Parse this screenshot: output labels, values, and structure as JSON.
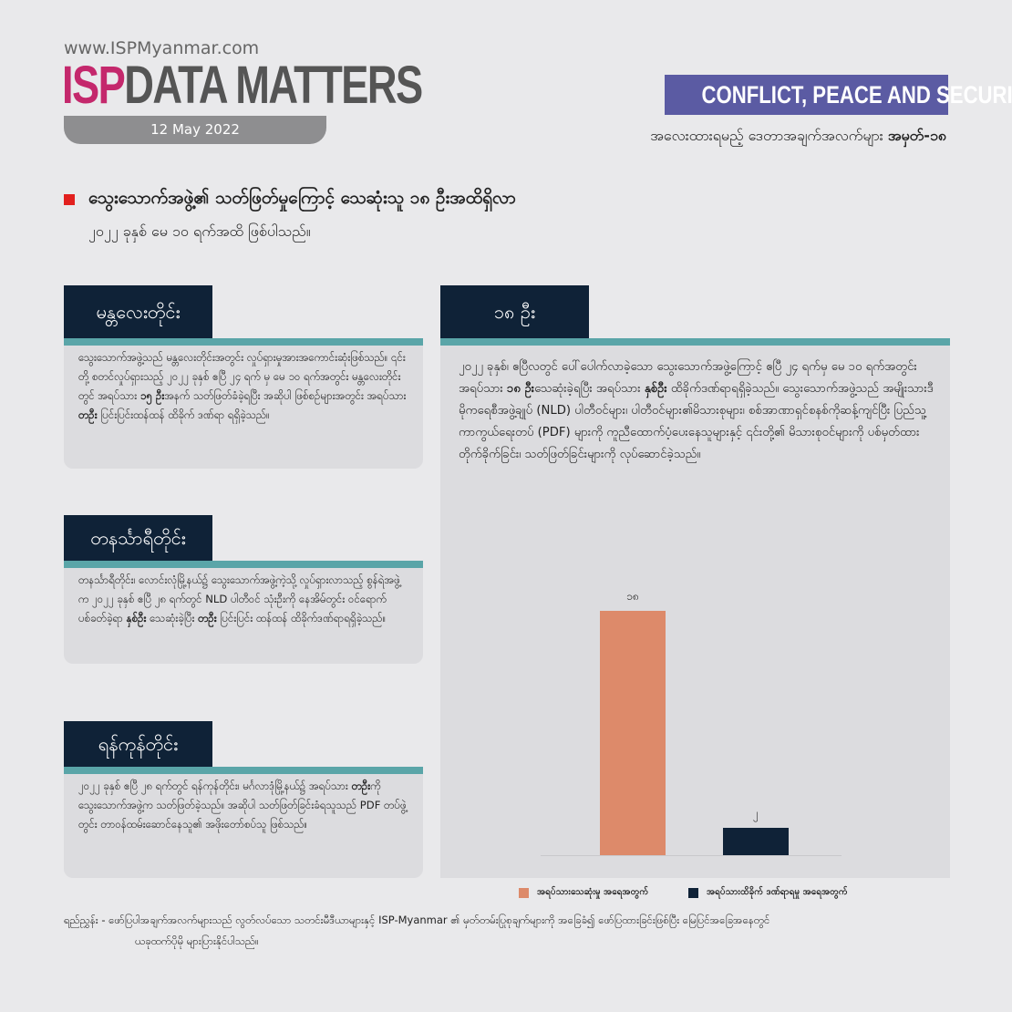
{
  "header": {
    "url": "www.ISPMyanmar.com",
    "logo_isp": "ISP",
    "logo_rest": "DATA MATTERS",
    "date": "12 May 2022",
    "category": "CONFLICT, PEACE AND SECURITY",
    "series_label": "အလေးထားရမည့် ဒေတာအချက်အလက်များ",
    "series_number": "အမှတ်-၁၈"
  },
  "headline": {
    "title": "သွေးသောက်အဖွဲ့၏ သတ်ဖြတ်မှုကြောင့် သေဆုံးသူ ၁၈ ဦးအထိရှိလာ",
    "subtitle": "၂၀၂၂ ခုနှစ် မေ ၁၀ ရက်အထိ ဖြစ်ပါသည်။"
  },
  "sections": {
    "mandalay": {
      "title": "မန္တလေးတိုင်း",
      "text": "သွေးသောက်အဖွဲ့သည် မန္တလေးတိုင်းအတွင်း လှုပ်ရှားမှုအားအကောင်းဆုံးဖြစ်သည်။ ၎င်းတို့ စတင်လှုပ်ရှားသည့် ၂၀၂၂ ခုနှစ် ဧပြီ ၂၄ ရက် မှ မေ ၁၀ ရက်အတွင်း မန္တလေးတိုင်းတွင် အရပ်သား ",
      "bold1": "၁၅ ဦး",
      "text2": "အနက် သတ်ဖြတ်ခံခဲ့ရပြီး အဆိုပါ ဖြစ်စဉ်များအတွင်း အရပ်သား ",
      "bold2": "တဦး",
      "text3": " ပြင်းပြင်းထန်ထန် ထိခိုက် ဒဏ်ရာ ရရှိခဲ့သည်။"
    },
    "tanintharyi": {
      "title": "တနင်္သာရီတိုင်း",
      "text": "တနင်္သာရီတိုင်း၊ လောင်းလုံမြို့နယ်၌ သွေးသောက်အဖွဲ့ကဲ့သို့ လှုပ်ရှားလာသည့် စွန်ရဲအဖွဲ့က ၂၀၂၂ ခုနှစ် ဧပြီ ၂၈ ရက်တွင် NLD ပါတီဝင် သုံးဦးကို နေအိမ်တွင်း ဝင်ရောက်ပစ်ခတ်ခဲ့ရာ ",
      "bold1": "နှစ်ဦး",
      "text2": " သေဆုံးခဲ့ပြီး ",
      "bold2": "တဦး",
      "text3": " ပြင်းပြင်း ထန်ထန် ထိခိုက်ဒဏ်ရာရရှိခဲ့သည်။"
    },
    "yangon": {
      "title": "ရန်ကုန်တိုင်း",
      "text": "၂၀၂၂ ခုနှစ် ဧပြီ ၂၈ ရက်တွင် ရန်ကုန်တိုင်း၊ မင်္ဂလာဒုံမြို့နယ်၌ အရပ်သား ",
      "bold1": "တဦး",
      "text2": "ကို သွေးသောက်အဖွဲ့က သတ်ဖြတ်ခဲ့သည်။ အဆိုပါ သတ်ဖြတ်ခြင်းခံရသူသည် PDF တပ်ဖွဲ့တွင်း တာဝန်ထမ်းဆောင်နေသူ၏ အဖိုးတော်စပ်သူ ဖြစ်သည်။"
    },
    "total": {
      "title": "၁၈ ဦး",
      "text": "၂၀၂၂ ခုနှစ်၊ ဧပြီလတွင် ပေါ်ပေါက်လာခဲ့သော သွေးသောက်အဖွဲ့ကြောင့် ဧပြီ ၂၄ ရက်မှ မေ ၁၀ ရက်အတွင်း အရပ်သား ",
      "bold1": "၁၈ ဦး",
      "text2": "သေဆုံးခဲ့ရပြီး အရပ်သား ",
      "bold2": "နှစ်ဦး",
      "text3": " ထိခိုက်ဒဏ်ရာရရှိခဲ့သည်။ သွေးသောက်အဖွဲ့သည် အမျိုးသားဒီမိုကရေစီအဖွဲ့ချုပ် (NLD) ပါတီဝင်များ၊ ပါတီဝင်များ၏မိသားစုများ၊ စစ်အာဏာရှင်စနစ်ကိုဆန့်ကျင်ပြီး ပြည်သူ့ကာကွယ်ရေးတပ် (PDF) များကို ကူညီထောက်ပံ့ပေးနေသူများနှင့် ၎င်းတို့၏ မိသားစုဝင်များကို ပစ်မှတ်ထားတိုက်ခိုက်ခြင်း၊ သတ်ဖြတ်ခြင်းများကို လုပ်ဆောင်ခဲ့သည်။"
    }
  },
  "chart_data": {
    "type": "bar",
    "categories": [
      "အရပ်သားသေဆုံးမှု အရေအတွက်",
      "အရပ်သားထိခိုက် ဒဏ်ရာရမှု အရေအတွက်"
    ],
    "values": [
      18,
      2
    ],
    "value_labels": [
      "၁၈",
      "၂"
    ],
    "colors": [
      "#dd8a6a",
      "#0f2237"
    ],
    "legend": [
      "အရပ်သားသေဆုံးမှု အရေအတွက်",
      "အရပ်သားထိခိုက် ဒဏ်ရာရမှု အရေအတွက်"
    ],
    "legend_position": "bottom",
    "title": "",
    "xlabel": "",
    "ylabel": "",
    "ylim": [
      0,
      18
    ],
    "grid": false
  },
  "footer": {
    "line1": "ရည်ညွှန်း - ဖော်ပြပါအချက်အလက်များသည် လွတ်လပ်သော သတင်းမီဒီယာများနှင့် ISP-Myanmar ၏ မှတ်တမ်းပြုစုချက်များကို အခြေခံ၍ ဖော်ပြထားခြင်းဖြစ်ပြီး မြေပြင်အခြေအနေတွင်",
    "line2": "ယခုထက်ပိုမို များပြားနိုင်ပါသည်။"
  }
}
